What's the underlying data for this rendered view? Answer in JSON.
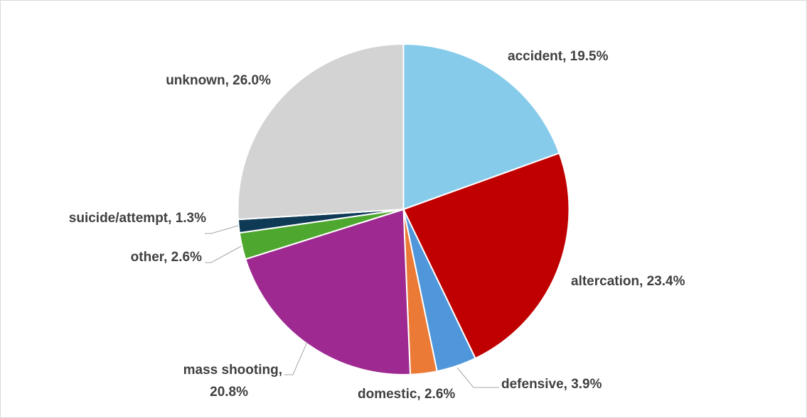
{
  "chart_data": {
    "type": "pie",
    "title": "",
    "start_angle_deg": 0,
    "direction": "clockwise",
    "legend": "none",
    "slices": [
      {
        "label": "accident",
        "value": 19.5,
        "display": [
          "accident, 19.5%"
        ],
        "color": "#87CBEB"
      },
      {
        "label": "altercation",
        "value": 23.4,
        "display": [
          "altercation, 23.4%"
        ],
        "color": "#C00000"
      },
      {
        "label": "defensive",
        "value": 3.9,
        "display": [
          "defensive, 3.9%"
        ],
        "color": "#4F96DA"
      },
      {
        "label": "domestic",
        "value": 2.6,
        "display": [
          "domestic, 2.6%"
        ],
        "color": "#EB7A37"
      },
      {
        "label": "mass shooting",
        "value": 20.8,
        "display": [
          "mass shooting,",
          "20.8%"
        ],
        "color": "#9E2A91"
      },
      {
        "label": "other",
        "value": 2.6,
        "display": [
          "other, 2.6%"
        ],
        "color": "#4EA72E"
      },
      {
        "label": "suicide/attempt",
        "value": 1.3,
        "display": [
          "suicide/attempt, 1.3%"
        ],
        "color": "#0E3A55"
      },
      {
        "label": "unknown",
        "value": 26.0,
        "display": [
          "unknown, 26.0%"
        ],
        "color": "#D3D3D3"
      }
    ]
  }
}
